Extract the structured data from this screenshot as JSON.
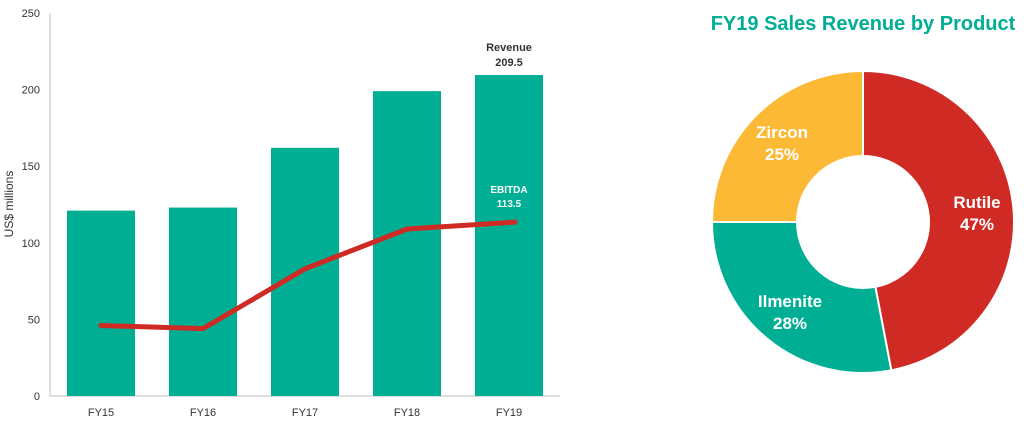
{
  "chart_data": [
    {
      "type": "bar",
      "ylabel": "US$ millions",
      "ylim": [
        0,
        250
      ],
      "yticks": [
        0,
        50,
        100,
        150,
        200,
        250
      ],
      "categories": [
        "FY15",
        "FY16",
        "FY17",
        "FY18",
        "FY19"
      ],
      "series": [
        {
          "name": "Revenue",
          "type": "bar",
          "color": "#00ae94",
          "values": [
            121,
            123,
            162,
            199,
            209.5
          ]
        },
        {
          "name": "EBITDA",
          "type": "line",
          "color": "#d02a24",
          "values": [
            46,
            44,
            83,
            109,
            113.5
          ]
        }
      ],
      "annotations": {
        "revenue": {
          "label": "Revenue",
          "value": "209.5"
        },
        "ebitda": {
          "label": "EBITDA",
          "value": "113.5"
        }
      },
      "grid": false
    },
    {
      "type": "pie",
      "title": "FY19 Sales Revenue by Product",
      "donut": true,
      "slices": [
        {
          "label": "Rutile",
          "value": 47,
          "text": "47%",
          "color": "#d02a24"
        },
        {
          "label": "Ilmenite",
          "value": 28,
          "text": "28%",
          "color": "#00ae94"
        },
        {
          "label": "Zircon",
          "value": 25,
          "text": "25%",
          "color": "#fbb935"
        }
      ]
    }
  ]
}
